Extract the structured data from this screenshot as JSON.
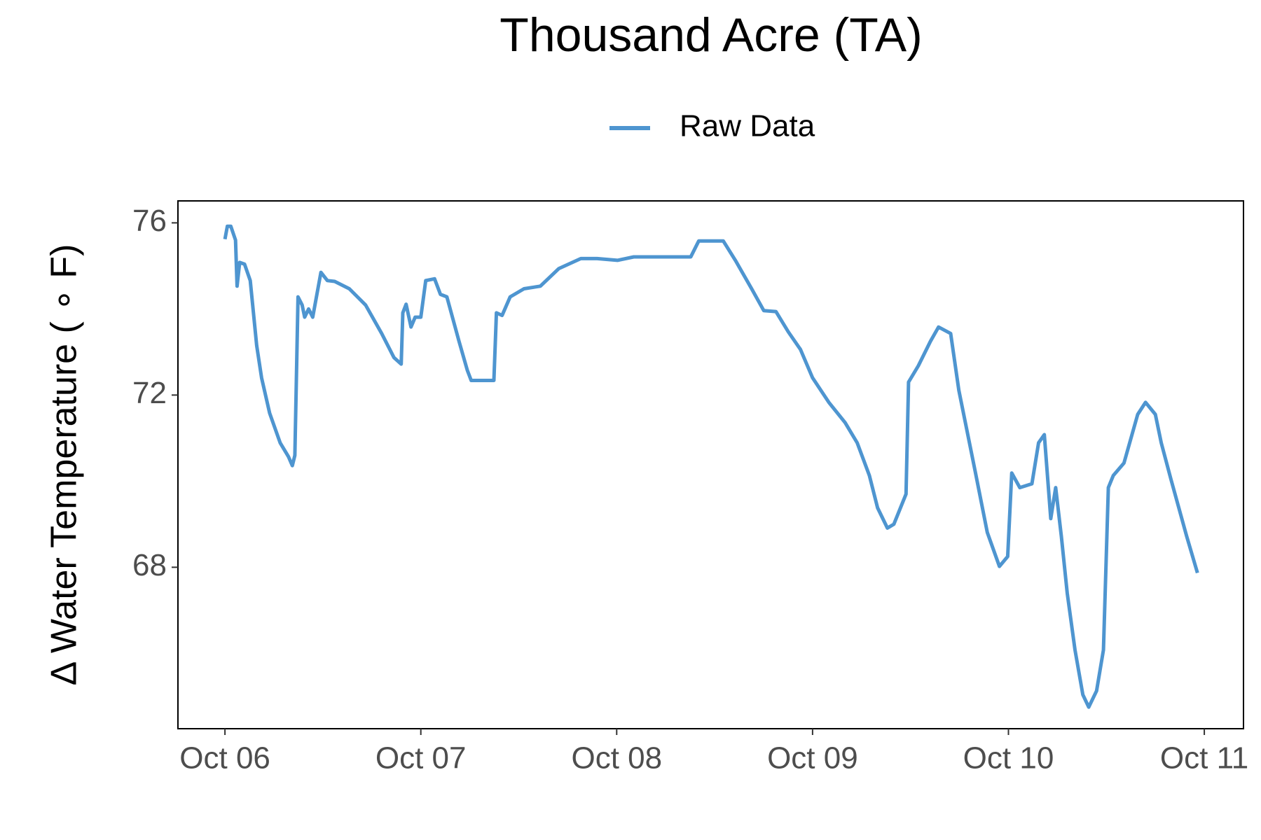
{
  "chart_data": {
    "type": "line",
    "title": "Thousand Acre (TA)",
    "y_label": "Δ Water Temperature ( ∘ F)",
    "xlim": [
      -0.24,
      5.2
    ],
    "ylim": [
      64.25,
      76.51
    ],
    "xticks": [
      {
        "value": 0,
        "label": "Oct 06"
      },
      {
        "value": 1,
        "label": "Oct 07"
      },
      {
        "value": 2,
        "label": "Oct 08"
      },
      {
        "value": 3,
        "label": "Oct 09"
      },
      {
        "value": 4,
        "label": "Oct 10"
      },
      {
        "value": 5,
        "label": "Oct 11"
      }
    ],
    "yticks": [
      68,
      72,
      76
    ],
    "grid": false,
    "legend": "top",
    "series": [
      {
        "name": "Raw Data",
        "color": "#4e95d0",
        "x": [
          0,
          0.012,
          0.03,
          0.054,
          0.062,
          0.075,
          0.1,
          0.129,
          0.162,
          0.187,
          0.228,
          0.282,
          0.324,
          0.344,
          0.357,
          0.373,
          0.394,
          0.407,
          0.427,
          0.448,
          0.49,
          0.523,
          0.56,
          0.635,
          0.718,
          0.8,
          0.863,
          0.9,
          0.908,
          0.925,
          0.95,
          0.971,
          1.0,
          1.025,
          1.07,
          1.1,
          1.133,
          1.195,
          1.237,
          1.257,
          1.373,
          1.386,
          1.415,
          1.456,
          1.527,
          1.61,
          1.705,
          1.817,
          1.9,
          2.004,
          2.087,
          2.378,
          2.419,
          2.502,
          2.544,
          2.606,
          2.689,
          2.751,
          2.813,
          2.876,
          2.938,
          3.0,
          3.083,
          3.166,
          3.228,
          3.29,
          3.332,
          3.382,
          3.415,
          3.477,
          3.49,
          3.54,
          3.602,
          3.643,
          3.705,
          3.747,
          3.83,
          3.892,
          3.954,
          3.996,
          4.017,
          4.058,
          4.12,
          4.154,
          4.183,
          4.216,
          4.241,
          4.27,
          4.3,
          4.34,
          4.38,
          4.41,
          4.45,
          4.485,
          4.51,
          4.535,
          4.59,
          4.66,
          4.7,
          4.75,
          4.78,
          4.83,
          4.91,
          4.965
        ],
        "values": [
          75.62,
          75.92,
          75.92,
          75.6,
          74.53,
          75.08,
          75.04,
          74.66,
          73.15,
          72.4,
          71.58,
          70.89,
          70.57,
          70.36,
          70.6,
          74.28,
          74.09,
          73.81,
          74.0,
          73.81,
          74.85,
          74.66,
          74.64,
          74.47,
          74.09,
          73.43,
          72.87,
          72.72,
          73.91,
          74.11,
          73.58,
          73.81,
          73.81,
          74.66,
          74.7,
          74.34,
          74.28,
          73.25,
          72.58,
          72.34,
          72.34,
          73.91,
          73.85,
          74.28,
          74.47,
          74.53,
          74.94,
          75.17,
          75.17,
          75.13,
          75.21,
          75.21,
          75.58,
          75.58,
          75.58,
          75.13,
          74.47,
          73.96,
          73.94,
          73.47,
          73.06,
          72.4,
          71.83,
          71.36,
          70.89,
          70.13,
          69.38,
          68.91,
          69.0,
          69.7,
          72.3,
          72.68,
          73.25,
          73.58,
          73.43,
          72.11,
          70.23,
          68.81,
          68.02,
          68.25,
          70.19,
          69.85,
          69.94,
          70.89,
          71.08,
          69.13,
          69.85,
          68.72,
          67.4,
          66.08,
          65.04,
          64.75,
          65.13,
          66.08,
          69.85,
          70.13,
          70.42,
          71.55,
          71.83,
          71.55,
          70.89,
          70.04,
          68.72,
          67.87
        ]
      }
    ]
  }
}
